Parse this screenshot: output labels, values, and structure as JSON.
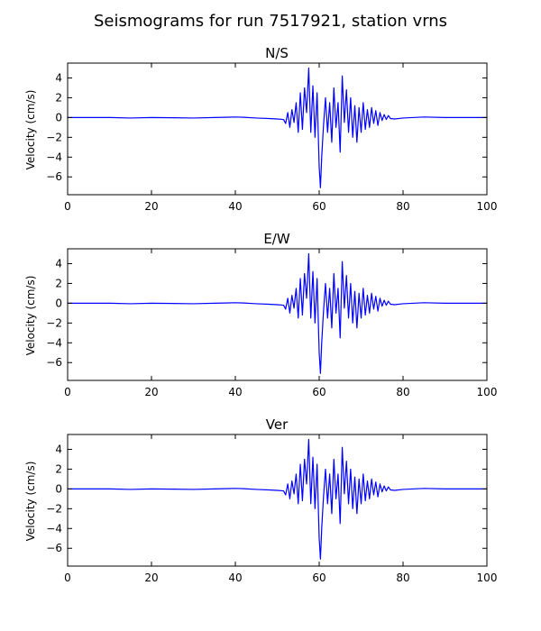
{
  "figure": {
    "title": "Seismograms for run 7517921, station vrns"
  },
  "chart_data": [
    {
      "type": "line",
      "title": "N/S",
      "xlabel": "",
      "ylabel": "Velocity (cm/s)",
      "xlim": [
        0,
        100
      ],
      "ylim": [
        -7.8,
        5.5
      ],
      "xticks": [
        0,
        20,
        40,
        60,
        80,
        100
      ],
      "yticks": [
        -6,
        -4,
        -2,
        0,
        2,
        4
      ],
      "line_color": "#0000ff",
      "grid": false,
      "series": [
        {
          "x": [
            0,
            5,
            10,
            15,
            20,
            25,
            30,
            35,
            40,
            42,
            45,
            48,
            50,
            51.5,
            52,
            52.5,
            53,
            53.5,
            54,
            54.5,
            55,
            55.5,
            56,
            56.5,
            57,
            57.5,
            58,
            58.5,
            59,
            59.5,
            60,
            60.3,
            60.6,
            61,
            61.5,
            62,
            62.5,
            63,
            63.5,
            64,
            64.5,
            65,
            65.5,
            66,
            66.5,
            67,
            67.5,
            68,
            68.5,
            69,
            69.5,
            70,
            70.5,
            71,
            71.5,
            72,
            72.5,
            73,
            73.5,
            74,
            74.5,
            75,
            75.5,
            76,
            76.5,
            77,
            78,
            80,
            85,
            90,
            95,
            100
          ],
          "y": [
            0.0,
            0.0,
            0.0,
            -0.05,
            0.0,
            -0.02,
            -0.05,
            0.0,
            0.05,
            0.02,
            -0.05,
            -0.1,
            -0.15,
            -0.2,
            -0.6,
            0.5,
            -1.0,
            0.8,
            -0.5,
            1.5,
            -1.5,
            2.5,
            -1.2,
            3.0,
            0.5,
            5.0,
            -1.5,
            3.2,
            -2.0,
            2.5,
            -5.0,
            -7.1,
            -4.0,
            -1.0,
            2.0,
            -1.5,
            1.5,
            -2.5,
            3.0,
            -1.0,
            1.5,
            -3.5,
            4.2,
            -0.5,
            2.8,
            -1.5,
            2.0,
            -2.0,
            1.2,
            -2.5,
            1.0,
            -1.5,
            1.5,
            -1.2,
            0.8,
            -1.0,
            1.0,
            -0.6,
            0.7,
            -0.8,
            0.5,
            -0.3,
            0.3,
            -0.2,
            0.2,
            -0.1,
            -0.15,
            -0.05,
            0.05,
            0.0,
            0.0,
            0.0
          ]
        }
      ]
    },
    {
      "type": "line",
      "title": "E/W",
      "xlabel": "",
      "ylabel": "Velocity (cm/s)",
      "xlim": [
        0,
        100
      ],
      "ylim": [
        -7.8,
        5.5
      ],
      "xticks": [
        0,
        20,
        40,
        60,
        80,
        100
      ],
      "yticks": [
        -6,
        -4,
        -2,
        0,
        2,
        4
      ],
      "line_color": "#0000ff",
      "grid": false,
      "series": [
        {
          "x": [
            0,
            5,
            10,
            15,
            20,
            25,
            30,
            35,
            40,
            42,
            45,
            48,
            50,
            51.5,
            52,
            52.5,
            53,
            53.5,
            54,
            54.5,
            55,
            55.5,
            56,
            56.5,
            57,
            57.5,
            58,
            58.5,
            59,
            59.5,
            60,
            60.3,
            60.6,
            61,
            61.5,
            62,
            62.5,
            63,
            63.5,
            64,
            64.5,
            65,
            65.5,
            66,
            66.5,
            67,
            67.5,
            68,
            68.5,
            69,
            69.5,
            70,
            70.5,
            71,
            71.5,
            72,
            72.5,
            73,
            73.5,
            74,
            74.5,
            75,
            75.5,
            76,
            76.5,
            77,
            78,
            80,
            85,
            90,
            95,
            100
          ],
          "y": [
            0.0,
            0.0,
            0.0,
            -0.05,
            0.0,
            -0.02,
            -0.05,
            0.0,
            0.05,
            0.02,
            -0.05,
            -0.1,
            -0.15,
            -0.2,
            -0.6,
            0.5,
            -1.0,
            0.8,
            -0.5,
            1.5,
            -1.5,
            2.5,
            -1.2,
            3.0,
            0.5,
            5.0,
            -1.5,
            3.2,
            -2.0,
            2.5,
            -5.0,
            -7.1,
            -4.0,
            -1.0,
            2.0,
            -1.5,
            1.5,
            -2.5,
            3.0,
            -1.0,
            1.5,
            -3.5,
            4.2,
            -0.5,
            2.8,
            -1.5,
            2.0,
            -2.0,
            1.2,
            -2.5,
            1.0,
            -1.5,
            1.5,
            -1.2,
            0.8,
            -1.0,
            1.0,
            -0.6,
            0.7,
            -0.8,
            0.5,
            -0.3,
            0.3,
            -0.2,
            0.2,
            -0.1,
            -0.15,
            -0.05,
            0.05,
            0.0,
            0.0,
            0.0
          ]
        }
      ]
    },
    {
      "type": "line",
      "title": "Ver",
      "xlabel": "",
      "ylabel": "Velocity (cm/s)",
      "xlim": [
        0,
        100
      ],
      "ylim": [
        -7.8,
        5.5
      ],
      "xticks": [
        0,
        20,
        40,
        60,
        80,
        100
      ],
      "yticks": [
        -6,
        -4,
        -2,
        0,
        2,
        4
      ],
      "line_color": "#0000ff",
      "grid": false,
      "series": [
        {
          "x": [
            0,
            5,
            10,
            15,
            20,
            25,
            30,
            35,
            40,
            42,
            45,
            48,
            50,
            51.5,
            52,
            52.5,
            53,
            53.5,
            54,
            54.5,
            55,
            55.5,
            56,
            56.5,
            57,
            57.5,
            58,
            58.5,
            59,
            59.5,
            60,
            60.3,
            60.6,
            61,
            61.5,
            62,
            62.5,
            63,
            63.5,
            64,
            64.5,
            65,
            65.5,
            66,
            66.5,
            67,
            67.5,
            68,
            68.5,
            69,
            69.5,
            70,
            70.5,
            71,
            71.5,
            72,
            72.5,
            73,
            73.5,
            74,
            74.5,
            75,
            75.5,
            76,
            76.5,
            77,
            78,
            80,
            85,
            90,
            95,
            100
          ],
          "y": [
            0.0,
            0.0,
            0.0,
            -0.05,
            0.0,
            -0.02,
            -0.05,
            0.0,
            0.05,
            0.02,
            -0.05,
            -0.1,
            -0.15,
            -0.2,
            -0.6,
            0.5,
            -1.0,
            0.8,
            -0.5,
            1.5,
            -1.5,
            2.5,
            -1.2,
            3.0,
            0.5,
            5.0,
            -1.5,
            3.2,
            -2.0,
            2.5,
            -5.0,
            -7.1,
            -4.0,
            -1.0,
            2.0,
            -1.5,
            1.5,
            -2.5,
            3.0,
            -1.0,
            1.5,
            -3.5,
            4.2,
            -0.5,
            2.8,
            -1.5,
            2.0,
            -2.0,
            1.2,
            -2.5,
            1.0,
            -1.5,
            1.5,
            -1.2,
            0.8,
            -1.0,
            1.0,
            -0.6,
            0.7,
            -0.8,
            0.5,
            -0.3,
            0.3,
            -0.2,
            0.2,
            -0.1,
            -0.15,
            -0.05,
            0.05,
            0.0,
            0.0,
            0.0
          ]
        }
      ]
    }
  ]
}
